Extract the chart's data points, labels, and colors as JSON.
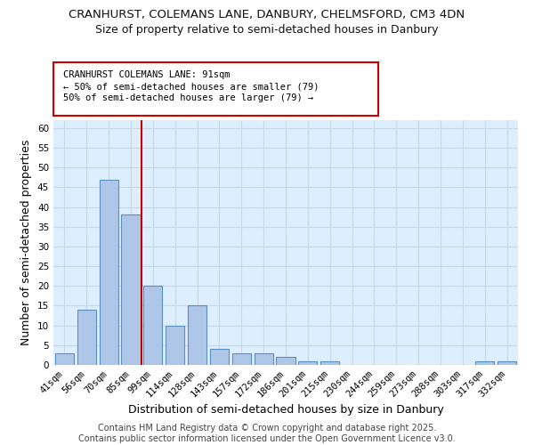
{
  "title_line1": "CRANHURST, COLEMANS LANE, DANBURY, CHELMSFORD, CM3 4DN",
  "title_line2": "Size of property relative to semi-detached houses in Danbury",
  "xlabel": "Distribution of semi-detached houses by size in Danbury",
  "ylabel": "Number of semi-detached properties",
  "categories": [
    "41sqm",
    "56sqm",
    "70sqm",
    "85sqm",
    "99sqm",
    "114sqm",
    "128sqm",
    "143sqm",
    "157sqm",
    "172sqm",
    "186sqm",
    "201sqm",
    "215sqm",
    "230sqm",
    "244sqm",
    "259sqm",
    "273sqm",
    "288sqm",
    "303sqm",
    "317sqm",
    "332sqm"
  ],
  "values": [
    3,
    14,
    47,
    38,
    20,
    10,
    15,
    4,
    3,
    3,
    2,
    1,
    1,
    0,
    0,
    0,
    0,
    0,
    0,
    1,
    1
  ],
  "bar_color": "#aec6e8",
  "bar_edgecolor": "#5a8fc0",
  "vline_color": "#cc0000",
  "annotation_box_text": "CRANHURST COLEMANS LANE: 91sqm\n← 50% of semi-detached houses are smaller (79)\n50% of semi-detached houses are larger (79) →",
  "annotation_box_color": "#ffffff",
  "annotation_box_edgecolor": "#cc0000",
  "ylim": [
    0,
    62
  ],
  "yticks": [
    0,
    5,
    10,
    15,
    20,
    25,
    30,
    35,
    40,
    45,
    50,
    55,
    60
  ],
  "grid_color": "#c8d8e8",
  "background_color": "#ddeeff",
  "footer_text": "Contains HM Land Registry data © Crown copyright and database right 2025.\nContains public sector information licensed under the Open Government Licence v3.0.",
  "title_fontsize": 9.5,
  "subtitle_fontsize": 9,
  "tick_fontsize": 7.5,
  "axis_label_fontsize": 9,
  "footer_fontsize": 7
}
